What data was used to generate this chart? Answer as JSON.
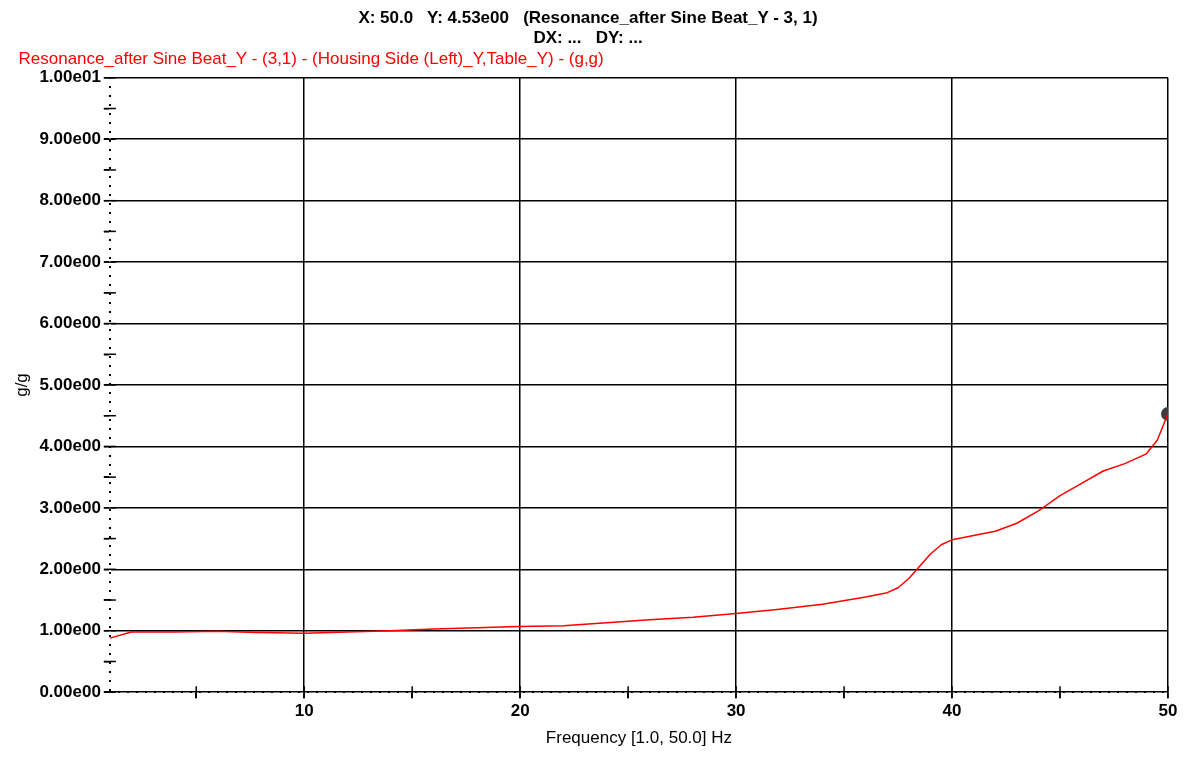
{
  "chart_data": {
    "type": "line",
    "title": "X: 50.0   Y: 4.53e00   (Resonance_after Sine Beat_Y - 3, 1)",
    "subtitle": "DX: ...   DY: ...",
    "xlabel": "Frequency [1.0, 50.0] Hz",
    "ylabel": "g/g",
    "series": [
      {
        "name": "Resonance_after Sine Beat_Y - (3,1) - (Housing Side (Left)_Y,Table_Y) - (g,g)",
        "color": "#ff0000",
        "x": [
          1,
          2,
          4,
          6,
          8,
          10,
          12,
          14,
          16,
          18,
          20,
          22,
          24,
          26,
          28,
          30,
          32,
          34,
          36,
          37,
          37.5,
          38,
          38.5,
          39,
          39.5,
          40,
          41,
          42,
          43,
          44,
          45,
          46,
          47,
          48,
          49,
          49.5,
          50
        ],
        "values": [
          0.88,
          0.98,
          0.98,
          0.99,
          0.97,
          0.96,
          0.98,
          1.0,
          1.03,
          1.05,
          1.07,
          1.08,
          1.13,
          1.18,
          1.22,
          1.28,
          1.35,
          1.43,
          1.55,
          1.62,
          1.7,
          1.85,
          2.05,
          2.25,
          2.4,
          2.48,
          2.55,
          2.62,
          2.75,
          2.95,
          3.2,
          3.4,
          3.6,
          3.72,
          3.88,
          4.1,
          4.53
        ]
      },
      {
        "type": "scatter",
        "color": "#3a3f3f",
        "x": [
          50
        ],
        "values": [
          4.53
        ],
        "marker": "circle"
      }
    ],
    "xlim": [
      1,
      50
    ],
    "ylim": [
      0,
      10
    ],
    "xticks": [
      {
        "value": 5,
        "label": null
      },
      10,
      {
        "value": 15,
        "label": null
      },
      20,
      {
        "value": 25,
        "label": null
      },
      30,
      {
        "value": 35,
        "label": null
      },
      40,
      {
        "value": 45,
        "label": null
      },
      50
    ],
    "yticks": [
      {
        "value": 0,
        "label": "0.00e00"
      },
      {
        "value": 0.5,
        "label": null
      },
      {
        "value": 1,
        "label": "1.00e00"
      },
      {
        "value": 1.5,
        "label": null
      },
      {
        "value": 2,
        "label": "2.00e00"
      },
      {
        "value": 2.5,
        "label": null
      },
      {
        "value": 3,
        "label": "3.00e00"
      },
      {
        "value": 3.5,
        "label": null
      },
      {
        "value": 4,
        "label": "4.00e00"
      },
      {
        "value": 4.5,
        "label": null
      },
      {
        "value": 5,
        "label": "5.00e00"
      },
      {
        "value": 5.5,
        "label": null
      },
      {
        "value": 6,
        "label": "6.00e00"
      },
      {
        "value": 6.5,
        "label": null
      },
      {
        "value": 7,
        "label": "7.00e00"
      },
      {
        "value": 7.5,
        "label": null
      },
      {
        "value": 8,
        "label": "8.00e00"
      },
      {
        "value": 8.5,
        "label": null
      },
      {
        "value": 9,
        "label": "9.00e00"
      },
      {
        "value": 9.5,
        "label": null
      },
      {
        "value": 10,
        "label": "1.00e01"
      }
    ],
    "grid": true,
    "legend": "top left",
    "marker": "none",
    "line_style": "solid"
  }
}
